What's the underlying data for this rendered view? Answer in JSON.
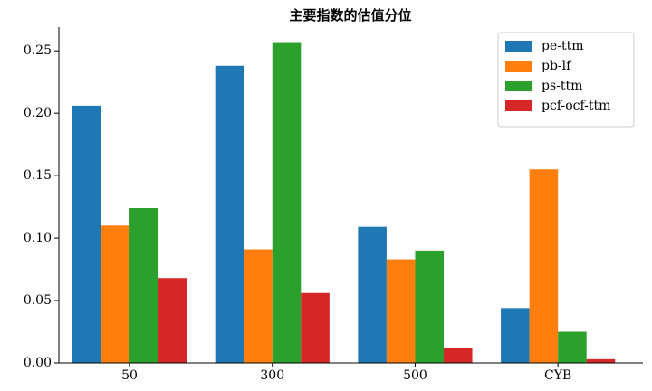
{
  "chart_data": {
    "type": "bar",
    "title": "主要指数的估值分位",
    "categories": [
      "50",
      "300",
      "500",
      "CYB"
    ],
    "series": [
      {
        "name": "pe-ttm",
        "color": "#1f77b4",
        "values": [
          0.206,
          0.238,
          0.109,
          0.044
        ]
      },
      {
        "name": "pb-lf",
        "color": "#ff7f0e",
        "values": [
          0.11,
          0.091,
          0.083,
          0.155
        ]
      },
      {
        "name": "ps-ttm",
        "color": "#2ca02c",
        "values": [
          0.124,
          0.257,
          0.09,
          0.025
        ]
      },
      {
        "name": "pcf-ocf-ttm",
        "color": "#d62728",
        "values": [
          0.068,
          0.056,
          0.012,
          0.003
        ]
      }
    ],
    "ylim": [
      0,
      0.269
    ],
    "yticks": [
      {
        "value": 0,
        "label": "0.00"
      },
      0.05,
      {
        "value": 0.1,
        "label": "0.10"
      },
      0.15,
      {
        "value": 0.2,
        "label": "0.20"
      },
      0.25
    ],
    "legend": "upper right"
  }
}
